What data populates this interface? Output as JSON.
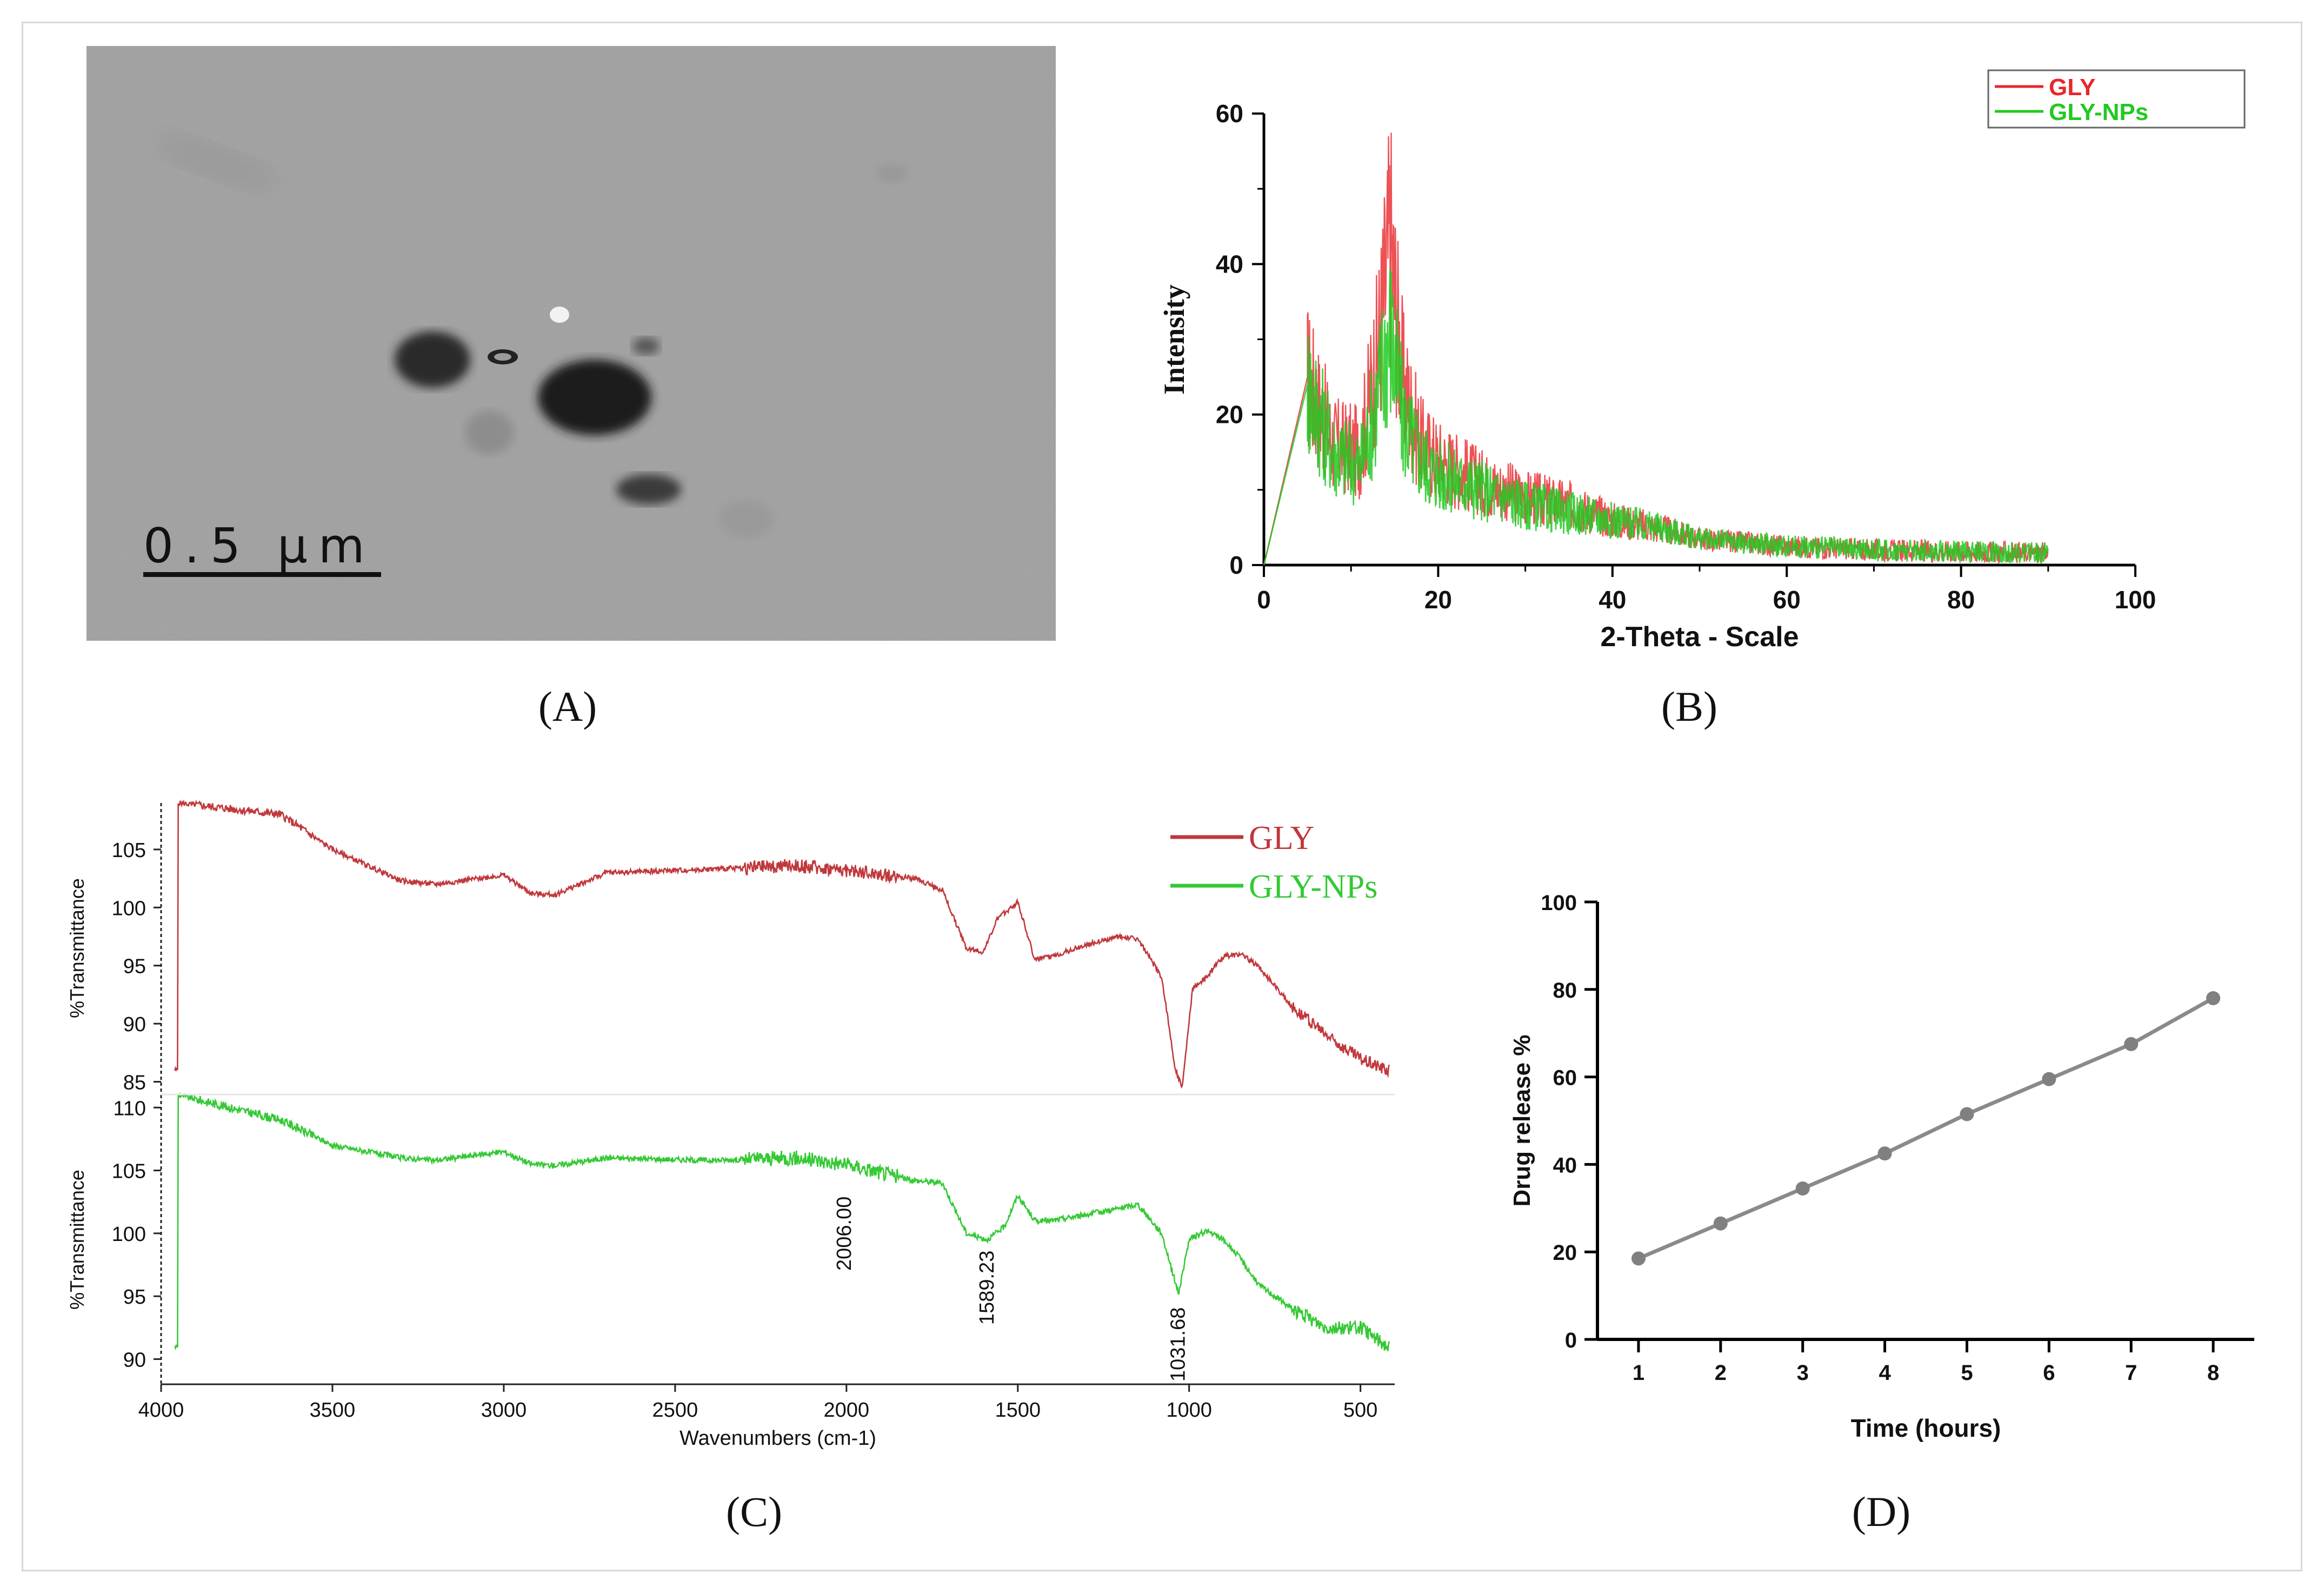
{
  "panel_labels": [
    "(A)",
    "(B)",
    "(C)",
    "(D)"
  ],
  "colors": {
    "gly_red": "#e8262b",
    "gly_green": "#22c922",
    "ftir_red": "#c0383c",
    "ftir_green": "#35c935",
    "line_gray": "#8a8a8a"
  },
  "micrograph": {
    "scale_bar_label": "0.5 μm"
  },
  "chart_data": [
    {
      "id": "B",
      "type": "line",
      "title": "",
      "xlabel": "2-Theta - Scale",
      "ylabel": "Intensity",
      "xlim": [
        0,
        100
      ],
      "ylim": [
        0,
        60
      ],
      "x_ticks": [
        "0",
        "20",
        "40",
        "60",
        "80",
        "100"
      ],
      "y_ticks": [
        "0",
        "20",
        "40",
        "60"
      ],
      "legend": {
        "position": "top-right"
      },
      "series": [
        {
          "name": "GLY",
          "color": "#e8262b",
          "x": [
            0,
            5,
            8,
            11,
            13,
            14,
            14.5,
            15,
            16,
            18,
            20,
            25,
            30,
            35,
            40,
            45,
            50,
            55,
            60,
            70,
            80,
            90
          ],
          "y": [
            0,
            25,
            16,
            15,
            28,
            38,
            44,
            36,
            24,
            16,
            14,
            11,
            9,
            8,
            6,
            5,
            3.5,
            3,
            2.5,
            2,
            1.8,
            1.5
          ]
        },
        {
          "name": "GLY-NPs",
          "color": "#22c922",
          "x": [
            0,
            5,
            8,
            11,
            13,
            14,
            14.5,
            15,
            16,
            18,
            20,
            25,
            30,
            35,
            40,
            45,
            50,
            55,
            60,
            70,
            80,
            90
          ],
          "y": [
            0,
            24,
            15,
            13,
            22,
            29,
            31,
            27,
            19,
            14,
            12,
            10,
            8,
            7,
            6,
            5,
            3.5,
            3,
            2.5,
            2,
            1.8,
            1.5
          ]
        }
      ]
    },
    {
      "id": "C",
      "type": "line",
      "xlabel": "Wavenumbers (cm-1)",
      "ylabel_top": "%Transmittance",
      "ylabel_bottom": "%Transmittance",
      "xlim": [
        4000,
        400
      ],
      "x_ticks": [
        "4000",
        "3500",
        "3000",
        "2500",
        "2000",
        "1500",
        "1000",
        "500"
      ],
      "top_ylim": [
        84,
        109
      ],
      "top_y_ticks": [
        "85",
        "90",
        "95",
        "100",
        "105"
      ],
      "bottom_ylim": [
        88,
        111
      ],
      "bottom_y_ticks": [
        "90",
        "95",
        "100",
        "105",
        "110"
      ],
      "legend": {
        "position": "top-right"
      },
      "annotations": [
        "2006.00",
        "1589.23",
        "1031.68"
      ],
      "series": [
        {
          "name": "GLY",
          "color": "#c0383c",
          "x": [
            3950,
            3800,
            3650,
            3500,
            3300,
            3200,
            3000,
            2920,
            2850,
            2700,
            2400,
            2150,
            2000,
            1800,
            1720,
            1650,
            1600,
            1560,
            1500,
            1450,
            1400,
            1300,
            1200,
            1150,
            1080,
            1040,
            1020,
            990,
            950,
            900,
            850,
            800,
            700,
            600,
            500,
            420
          ],
          "y": [
            109,
            108.5,
            108,
            105,
            102.3,
            102,
            102.8,
            101.2,
            101.1,
            103,
            103.3,
            103.6,
            103.2,
            102.5,
            101.5,
            96.5,
            96.2,
            99,
            100.5,
            95.5,
            95.8,
            96.8,
            97.5,
            97.3,
            94,
            86,
            84.5,
            93,
            94,
            95.8,
            96,
            95,
            91.5,
            89,
            87,
            86
          ]
        },
        {
          "name": "GLY-NPs",
          "color": "#35c935",
          "x": [
            3950,
            3800,
            3650,
            3500,
            3300,
            3200,
            3000,
            2920,
            2850,
            2700,
            2400,
            2150,
            2006,
            1800,
            1720,
            1650,
            1589,
            1540,
            1500,
            1450,
            1400,
            1300,
            1200,
            1150,
            1080,
            1031,
            1000,
            950,
            900,
            850,
            800,
            700,
            600,
            500,
            420
          ],
          "y": [
            111,
            110,
            109,
            107,
            106,
            105.8,
            106.5,
            105.5,
            105.4,
            106,
            105.8,
            106,
            105.5,
            104.2,
            104,
            100,
            99.5,
            100.5,
            103,
            101,
            101,
            101.5,
            102,
            102.3,
            100,
            95.2,
            99.5,
            100.2,
            99.5,
            98,
            96,
            94,
            92.5,
            92.5,
            91
          ]
        }
      ]
    },
    {
      "id": "D",
      "type": "line",
      "xlabel": "Time (hours)",
      "ylabel": "Drug release %",
      "xlim": [
        0.5,
        8.5
      ],
      "ylim": [
        0,
        100
      ],
      "x_ticks": [
        "1",
        "2",
        "3",
        "4",
        "5",
        "6",
        "7",
        "8"
      ],
      "y_ticks": [
        "0",
        "20",
        "40",
        "60",
        "80",
        "100"
      ],
      "series": [
        {
          "name": "Drug release",
          "color": "#8a8a8a",
          "x": [
            1,
            2,
            3,
            4,
            5,
            6,
            7,
            8
          ],
          "y": [
            18.5,
            26.5,
            34.5,
            42.5,
            51.5,
            59.5,
            67.5,
            78
          ]
        }
      ]
    }
  ]
}
